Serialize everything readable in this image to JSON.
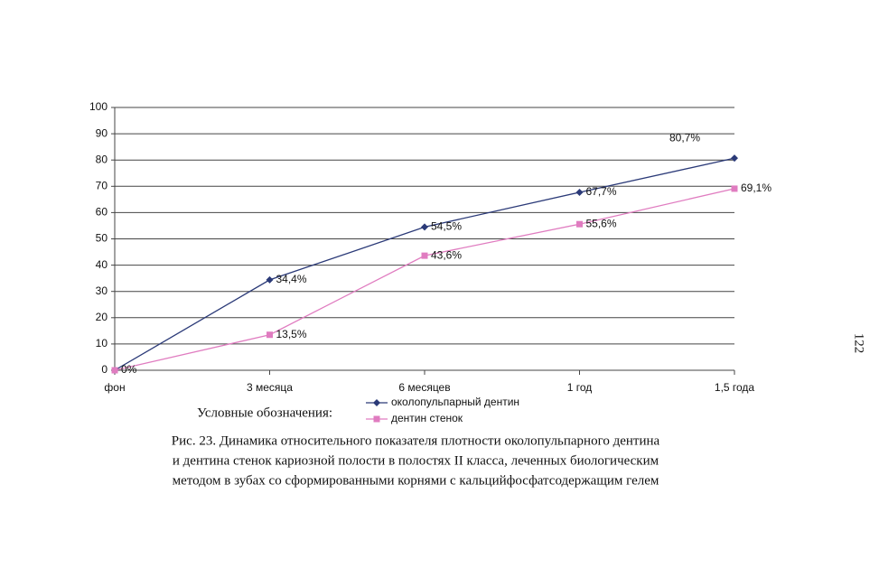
{
  "chart_data": {
    "type": "line",
    "categories": [
      "фон",
      "3 месяца",
      "6 месяцев",
      "1 год",
      "1,5 года"
    ],
    "series": [
      {
        "name": "околопульпарный дентин",
        "color": "#2b3a78",
        "marker": "diamond",
        "values": [
          0,
          34.4,
          54.5,
          67.7,
          80.7
        ],
        "value_labels": [
          null,
          "34,4%",
          "54,5%",
          "67,7%",
          "80,7%"
        ]
      },
      {
        "name": "дентин стенок",
        "color": "#e07cc0",
        "marker": "square",
        "values": [
          0,
          13.5,
          43.6,
          55.6,
          69.1
        ],
        "value_labels": [
          "0%",
          "13,5%",
          "43,6%",
          "55,6%",
          "69,1%"
        ]
      }
    ],
    "ylim": [
      0,
      100
    ],
    "yticks": [
      0,
      10,
      20,
      30,
      40,
      50,
      60,
      70,
      80,
      90,
      100
    ],
    "grid": true,
    "legend_title": "Условные обозначения:"
  },
  "caption": [
    "Рис. 23.  Динамика относительного показателя плотности околопульпарного дентина",
    "и дентина стенок кариозной полости в полостях II класса, леченных биологическим",
    "методом в зубах со сформированными корнями с кальцийфосфатсодержащим гелем"
  ],
  "page_number": "122"
}
